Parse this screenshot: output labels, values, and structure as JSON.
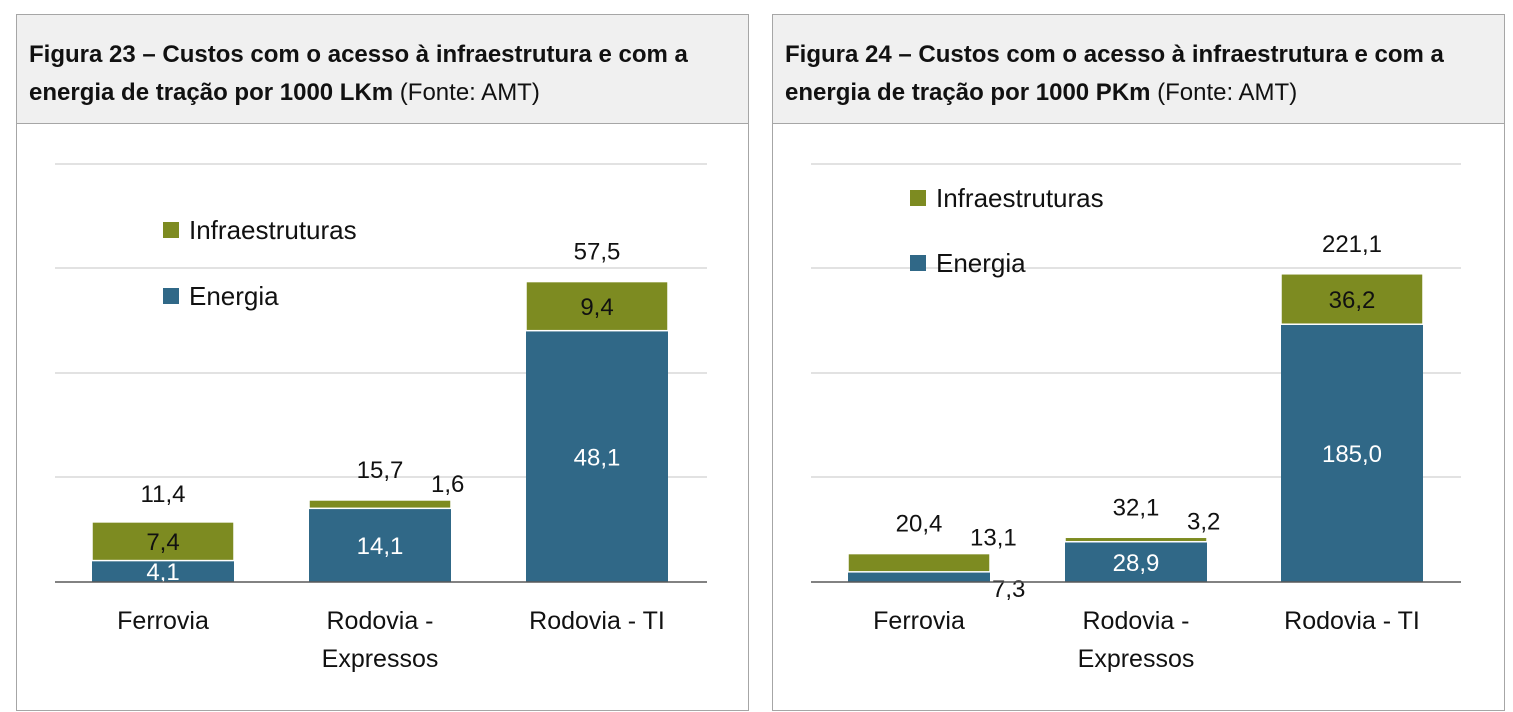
{
  "figures": [
    {
      "caption_bold": "Figura 23 – Custos com o acesso à infraestrutura e com a energia de tração por 1000 LKm",
      "caption_source": " (Fonte: AMT)"
    },
    {
      "caption_bold": "Figura 24 – Custos com o acesso à infraestrutura e com a energia de tração por 1000 PKm",
      "caption_source": " (Fonte: AMT)"
    }
  ],
  "colors": {
    "energia": "#306887",
    "infraestruturas": "#7d8b21",
    "grid": "#d9d9d9",
    "axis": "#595959"
  },
  "chart_data": [
    {
      "type": "bar",
      "stacked": true,
      "title": "",
      "xlabel": "",
      "ylabel": "",
      "ylim": [
        0,
        80
      ],
      "grid": true,
      "legend_placement": "top-left inside plot",
      "categories": [
        [
          "Ferrovia"
        ],
        [
          "Rodovia -",
          "Expressos"
        ],
        [
          "Rodovia - TI"
        ]
      ],
      "series": [
        {
          "name": "Energia",
          "values": [
            4.1,
            14.1,
            48.1
          ],
          "labels": [
            "4,1",
            "14,1",
            "48,1"
          ]
        },
        {
          "name": "Infraestruturas",
          "values": [
            7.4,
            1.6,
            9.4
          ],
          "labels": [
            "7,4",
            "1,6",
            "9,4"
          ]
        }
      ],
      "totals": [
        11.4,
        15.7,
        57.5
      ],
      "total_labels": [
        "11,4",
        "15,7",
        "57,5"
      ]
    },
    {
      "type": "bar",
      "stacked": true,
      "title": "",
      "xlabel": "",
      "ylabel": "",
      "ylim": [
        0,
        300
      ],
      "grid": true,
      "legend_placement": "top-left inside plot",
      "categories": [
        [
          "Ferrovia"
        ],
        [
          "Rodovia -",
          "Expressos"
        ],
        [
          "Rodovia - TI"
        ]
      ],
      "series": [
        {
          "name": "Energia",
          "values": [
            7.3,
            28.9,
            185.0
          ],
          "labels": [
            "7,3",
            "28,9",
            "185,0"
          ]
        },
        {
          "name": "Infraestruturas",
          "values": [
            13.1,
            3.2,
            36.2
          ],
          "labels": [
            "13,1",
            "3,2",
            "36,2"
          ]
        }
      ],
      "totals": [
        20.4,
        32.1,
        221.1
      ],
      "total_labels": [
        "20,4",
        "32,1",
        "221,1"
      ]
    }
  ]
}
